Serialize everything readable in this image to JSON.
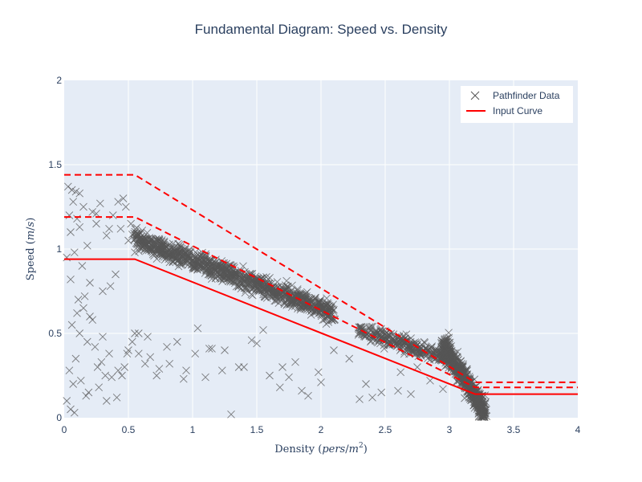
{
  "chart_data": {
    "type": "scatter",
    "title": "Fundamental Diagram: Speed vs. Density",
    "xlabel": "Density (pers/m²)",
    "ylabel": "Speed (m/s)",
    "xlim": [
      0,
      4
    ],
    "ylim": [
      0,
      2
    ],
    "xticks": [
      "0",
      "0.5",
      "1",
      "1.5",
      "2",
      "2.5",
      "3",
      "3.5",
      "4"
    ],
    "yticks": [
      "0",
      "0.5",
      "1",
      "1.5",
      "2"
    ],
    "grid": true,
    "legend_position": "top-right",
    "colors": {
      "scatter": "#555555",
      "curve": "#ff0000",
      "plot_bg": "#e5ecf6",
      "grid": "#ffffff",
      "text": "#2a3f5f"
    },
    "series": [
      {
        "name": "Pathfinder Data",
        "mode": "markers",
        "marker": "x",
        "x": [
          0.03,
          0.06,
          0.09,
          0.04,
          0.07,
          0.1,
          0.05,
          0.12,
          0.15,
          0.08,
          0.18,
          0.02,
          0.14,
          0.22,
          0.28,
          0.25,
          0.33,
          0.38,
          0.42,
          0.46,
          0.48,
          0.44,
          0.5,
          0.52,
          0.4,
          0.36,
          0.3,
          0.2,
          0.16,
          0.11,
          0.06,
          0.12,
          0.18,
          0.24,
          0.3,
          0.09,
          0.26,
          0.35,
          0.45,
          0.5,
          0.04,
          0.07,
          0.13,
          0.19,
          0.27,
          0.33,
          0.41,
          0.47,
          0.53,
          0.58,
          0.63,
          0.55,
          0.2,
          0.1,
          0.15,
          0.22,
          0.05,
          0.32,
          0.42,
          0.02,
          0.08,
          0.17,
          0.29,
          0.37,
          0.49,
          0.58,
          0.67,
          0.74,
          0.82,
          0.88,
          0.93,
          1.04,
          1.13,
          1.23,
          1.36,
          1.46,
          1.55,
          1.68,
          1.75,
          1.85,
          1.98,
          2.1,
          2.22,
          2.35,
          2.47,
          2.62,
          2.75,
          2.85,
          2.95,
          1.1,
          1.3,
          1.5,
          1.7,
          1.9,
          2.3,
          2.6,
          0.65,
          0.8,
          0.95,
          1.15,
          1.4,
          1.6,
          1.8,
          2.0,
          2.4,
          2.7,
          1.02,
          1.25,
          0.72,
          0.55,
          0.35,
          0.25,
          0.12,
          0.05
        ],
        "y": [
          1.37,
          1.35,
          1.34,
          1.2,
          1.28,
          1.18,
          1.1,
          1.33,
          1.25,
          0.98,
          1.02,
          0.95,
          0.9,
          1.22,
          1.27,
          1.15,
          1.08,
          1.2,
          1.28,
          1.3,
          1.25,
          1.12,
          1.05,
          1.15,
          0.85,
          0.78,
          0.75,
          0.8,
          0.72,
          0.7,
          0.55,
          0.5,
          0.45,
          0.42,
          0.48,
          0.35,
          0.3,
          0.38,
          0.25,
          0.4,
          0.28,
          0.2,
          0.22,
          0.15,
          0.18,
          0.1,
          0.12,
          0.3,
          0.45,
          0.38,
          0.32,
          0.5,
          0.6,
          0.62,
          0.65,
          0.58,
          0.05,
          0.25,
          0.28,
          0.1,
          0.03,
          0.13,
          0.33,
          0.24,
          0.38,
          0.5,
          0.36,
          0.29,
          0.32,
          0.45,
          0.23,
          0.53,
          0.41,
          0.28,
          0.3,
          0.46,
          0.52,
          0.18,
          0.24,
          0.16,
          0.27,
          0.4,
          0.35,
          0.2,
          0.15,
          0.27,
          0.3,
          0.22,
          0.17,
          0.24,
          0.02,
          0.44,
          0.3,
          0.13,
          0.11,
          0.16,
          0.48,
          0.42,
          0.28,
          0.41,
          0.3,
          0.25,
          0.33,
          0.21,
          0.12,
          0.14,
          0.38,
          0.4,
          0.25,
          0.98,
          1.12,
          1.21,
          1.13,
          0.82
        ],
        "bands": [
          {
            "x_start": 0.55,
            "x_end": 2.1,
            "y_start": 1.06,
            "y_end": 0.62,
            "spread": 0.06,
            "count": 1100
          },
          {
            "x_start": 2.3,
            "x_end": 3.0,
            "y_start": 0.52,
            "y_end": 0.35,
            "spread": 0.05,
            "count": 320
          },
          {
            "x_start": 2.95,
            "x_end": 3.28,
            "y_start": 0.44,
            "y_end": 0.03,
            "spread": 0.07,
            "count": 650
          }
        ]
      },
      {
        "name": "Input Curve",
        "mode": "lines",
        "style": "solid",
        "x": [
          0,
          0.55,
          3.2,
          4
        ],
        "y": [
          0.94,
          0.94,
          0.14,
          0.14
        ]
      },
      {
        "name": "",
        "mode": "lines",
        "style": "dashed",
        "x": [
          0,
          0.55,
          3.2,
          4
        ],
        "y": [
          1.19,
          1.19,
          0.18,
          0.18
        ]
      },
      {
        "name": "",
        "mode": "lines",
        "style": "dashed",
        "x": [
          0,
          0.55,
          3.2,
          4
        ],
        "y": [
          1.44,
          1.44,
          0.21,
          0.21
        ]
      }
    ]
  }
}
